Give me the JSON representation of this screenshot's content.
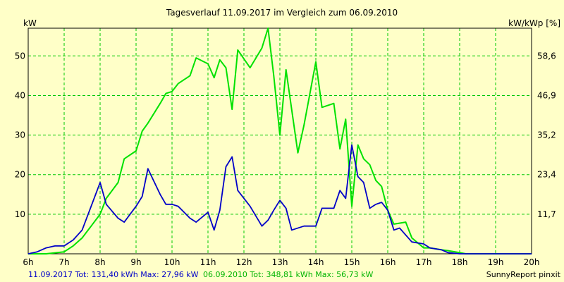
{
  "chart_data": {
    "type": "line",
    "title": "Tagesverlauf 11.09.2017 im Vergleich zum 06.09.2010",
    "ylabel_left": "kW",
    "ylabel_right": "kW/kWp [%]",
    "x_ticks": [
      "6h",
      "7h",
      "8h",
      "9h",
      "10h",
      "11h",
      "12h",
      "13h",
      "14h",
      "15h",
      "16h",
      "17h",
      "18h",
      "19h",
      "20h"
    ],
    "xlim": [
      6,
      20
    ],
    "ylim": [
      0,
      57
    ],
    "y_ticks_left": [
      "10",
      "20",
      "30",
      "40",
      "50"
    ],
    "y_ticks_left_values": [
      10,
      20,
      30,
      40,
      50
    ],
    "y_ticks_right": [
      "11,7",
      "23,4",
      "35,2",
      "46,9",
      "58,6"
    ],
    "grid": true,
    "series": [
      {
        "name": "11.09.2017",
        "color": "#0000c8",
        "x": [
          6.0,
          6.25,
          6.5,
          6.75,
          7.0,
          7.25,
          7.5,
          7.75,
          8.0,
          8.17,
          8.5,
          8.67,
          9.0,
          9.17,
          9.33,
          9.67,
          9.83,
          10.0,
          10.17,
          10.5,
          10.67,
          11.0,
          11.17,
          11.33,
          11.5,
          11.67,
          11.83,
          12.17,
          12.5,
          12.67,
          12.83,
          13.0,
          13.17,
          13.33,
          13.67,
          14.0,
          14.17,
          14.5,
          14.67,
          14.83,
          15.0,
          15.17,
          15.33,
          15.5,
          15.67,
          15.83,
          16.0,
          16.17,
          16.33,
          16.67,
          17.0,
          17.17,
          17.5,
          17.67,
          18.0,
          18.17,
          18.5,
          19.0,
          19.5,
          20.0
        ],
        "y": [
          0,
          0.5,
          1.5,
          2,
          2,
          3.5,
          6,
          12,
          18,
          12.5,
          9,
          8,
          12,
          14.5,
          21.5,
          15,
          12.5,
          12.5,
          12,
          9,
          8,
          10.5,
          6,
          11,
          22,
          24.5,
          16,
          12,
          7,
          8.5,
          11,
          13.5,
          11.5,
          6,
          7,
          7,
          11.5,
          11.5,
          16,
          14,
          27.5,
          19.5,
          18,
          11.5,
          12.5,
          13,
          11,
          6,
          6.5,
          3,
          2.5,
          1.5,
          1,
          0.3,
          0,
          0,
          0,
          0,
          0,
          0
        ]
      },
      {
        "name": "06.09.2010",
        "color": "#00e100",
        "x": [
          6.0,
          6.5,
          7.0,
          7.25,
          7.5,
          7.75,
          8.0,
          8.17,
          8.5,
          8.67,
          9.0,
          9.17,
          9.33,
          9.67,
          9.83,
          10.0,
          10.17,
          10.5,
          10.67,
          11.0,
          11.17,
          11.33,
          11.5,
          11.67,
          11.83,
          12.17,
          12.5,
          12.67,
          12.83,
          13.0,
          13.17,
          13.5,
          13.67,
          14.0,
          14.17,
          14.5,
          14.67,
          14.83,
          15.0,
          15.17,
          15.33,
          15.5,
          15.67,
          15.83,
          16.0,
          16.17,
          16.5,
          16.67,
          17.0,
          17.17,
          17.5,
          17.67,
          18.0,
          18.17,
          18.5,
          19.0,
          19.5,
          20.0
        ],
        "y": [
          0,
          0,
          0.5,
          2,
          4,
          7,
          10,
          14,
          18,
          24,
          26,
          31,
          33,
          38,
          40.5,
          41,
          43,
          45,
          49.5,
          48,
          44.5,
          49,
          47,
          36.5,
          51.5,
          47,
          52,
          57,
          45,
          30,
          46.5,
          25.5,
          32.5,
          48.5,
          37,
          38,
          26.5,
          34,
          12,
          27.5,
          24,
          22.5,
          18.5,
          17,
          11,
          7.5,
          8,
          4,
          1.5,
          1.5,
          1,
          0.8,
          0.3,
          0,
          0,
          0,
          0,
          0
        ]
      }
    ],
    "footer_left_2017": "11.09.2017 Tot: 131,40 kWh Max: 27,96 kW",
    "footer_left_2010": "06.09.2010 Tot: 348,81 kWh Max: 56,73 kW",
    "footer_right": "SunnyReport pinxit",
    "colors": {
      "background": "#ffffc8",
      "grid": "#00c800",
      "axis": "#000000"
    }
  }
}
